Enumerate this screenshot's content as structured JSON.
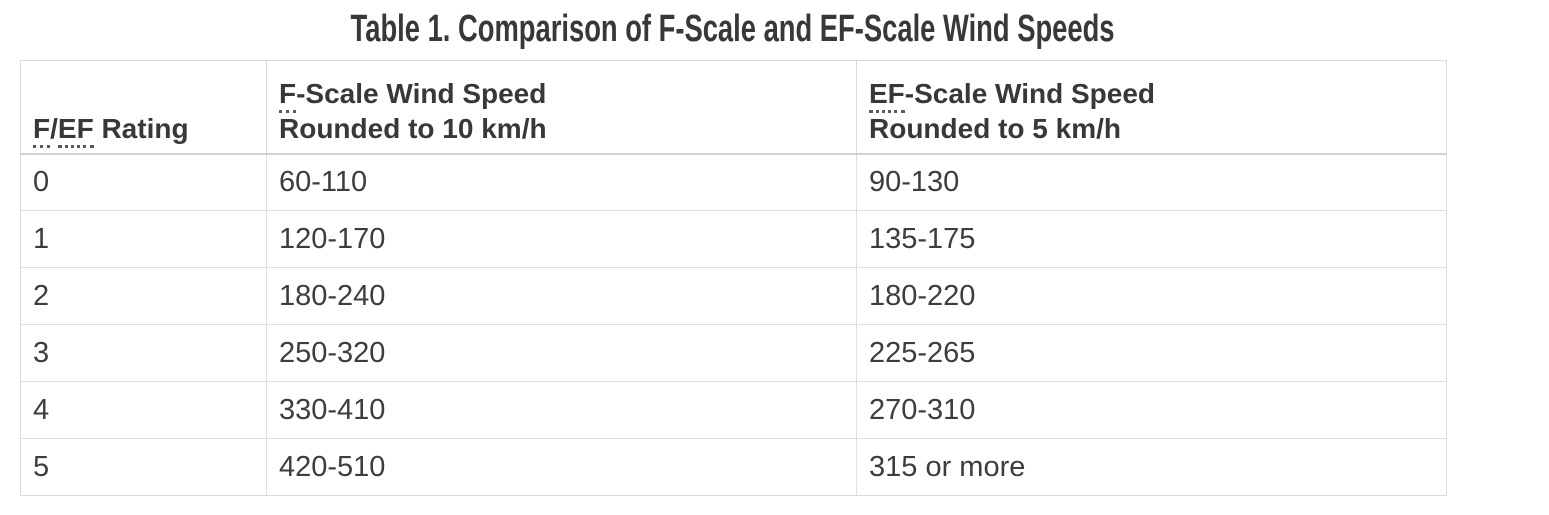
{
  "title": "Table 1. Comparison of F-Scale and EF-Scale Wind Speeds",
  "colors": {
    "background": "#ffffff",
    "text": "#3d3d3d",
    "heading_text": "#383838",
    "border": "#dadada",
    "row_border": "#dfdfdf",
    "header_bottom_border": "#d2d2d2",
    "spellcheck_dots": "#5a5a5a"
  },
  "table": {
    "headers": {
      "rating": {
        "abbr1": "F",
        "separator": "/",
        "abbr2": "EF",
        "rest": " Rating"
      },
      "f_scale": {
        "abbr": "F",
        "line1_rest": "-Scale Wind Speed",
        "line2": "Rounded to 10 km/h"
      },
      "ef_scale": {
        "abbr": "EF",
        "line1_rest": "-Scale Wind Speed",
        "line2": "Rounded to 5 km/h"
      }
    },
    "rows": [
      {
        "rating": "0",
        "f": "60-110",
        "ef": "90-130"
      },
      {
        "rating": "1",
        "f": "120-170",
        "ef": "135-175"
      },
      {
        "rating": "2",
        "f": "180-240",
        "ef": "180-220"
      },
      {
        "rating": "3",
        "f": "250-320",
        "ef": "225-265"
      },
      {
        "rating": "4",
        "f": "330-410",
        "ef": "270-310"
      },
      {
        "rating": "5",
        "f": "420-510",
        "ef": "315 or more"
      }
    ]
  },
  "chart_data": {
    "type": "table",
    "title": "Table 1. Comparison of F-Scale and EF-Scale Wind Speeds",
    "columns": [
      "F/EF Rating",
      "F-Scale Wind Speed Rounded to 10 km/h",
      "EF-Scale Wind Speed Rounded to 5 km/h"
    ],
    "rows": [
      [
        "0",
        "60-110",
        "90-130"
      ],
      [
        "1",
        "120-170",
        "135-175"
      ],
      [
        "2",
        "180-240",
        "180-220"
      ],
      [
        "3",
        "250-320",
        "225-265"
      ],
      [
        "4",
        "330-410",
        "270-310"
      ],
      [
        "5",
        "420-510",
        "315 or more"
      ]
    ]
  }
}
